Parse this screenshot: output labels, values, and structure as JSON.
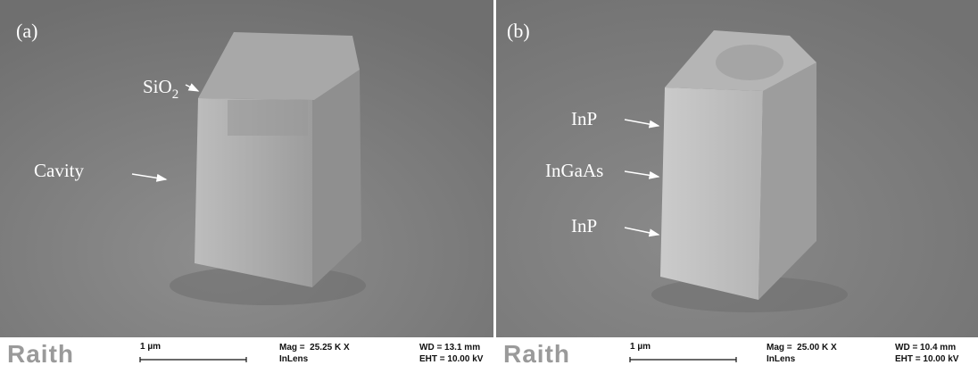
{
  "panels": [
    {
      "label": "(a)",
      "annotations": [
        {
          "text": "SiO",
          "subscript": "2"
        },
        {
          "text": "Cavity"
        }
      ],
      "info": {
        "logo": "Raith",
        "scale": "1 µm",
        "mag": "Mag =  25.25 K X",
        "detector": "InLens",
        "wd": "WD = 13.1 mm",
        "eht": "EHT = 10.00 kV"
      }
    },
    {
      "label": "(b)",
      "annotations": [
        {
          "text": "InP"
        },
        {
          "text": "InGaAs"
        },
        {
          "text": "InP"
        }
      ],
      "info": {
        "logo": "Raith",
        "scale": "1 µm",
        "mag": "Mag =  25.00 K X",
        "detector": "InLens",
        "wd": "WD = 10.4 mm",
        "eht": "EHT = 10.00 kV"
      }
    }
  ]
}
